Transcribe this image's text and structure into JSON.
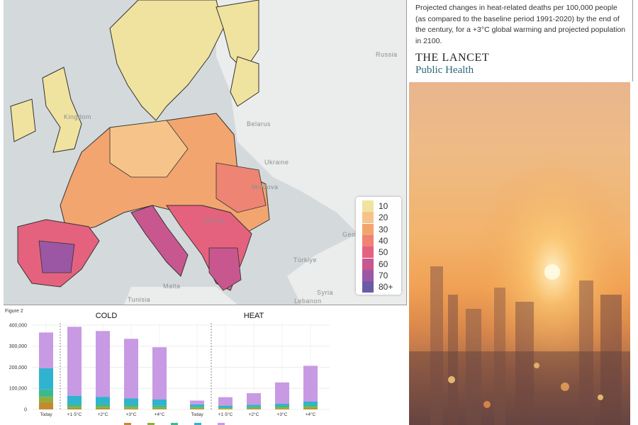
{
  "map": {
    "country_labels": [
      {
        "name": "Russia"
      },
      {
        "name": "Belarus"
      },
      {
        "name": "Ukraine"
      },
      {
        "name": "Moldova"
      },
      {
        "name": "Serbia"
      },
      {
        "name": "Türkiye"
      },
      {
        "name": "Syria"
      },
      {
        "name": "Lebanon"
      },
      {
        "name": "Malta"
      },
      {
        "name": "Tunisia"
      },
      {
        "name": "Geo"
      },
      {
        "name": "Kingdom"
      }
    ],
    "legend": [
      {
        "label": "10",
        "color": "#f0e3a0"
      },
      {
        "label": "20",
        "color": "#f6c48a"
      },
      {
        "label": "30",
        "color": "#f3a56f"
      },
      {
        "label": "40",
        "color": "#ee8473"
      },
      {
        "label": "50",
        "color": "#e5627e"
      },
      {
        "label": "60",
        "color": "#c8578f"
      },
      {
        "label": "70",
        "color": "#9b57a4"
      },
      {
        "label": "80+",
        "color": "#6c5aa8"
      }
    ]
  },
  "info": {
    "caption": "Projected changes in heat-related deaths per 100,000 people (as compared to the baseline period 1991-2020) by the end of the century, for a +3°C global warming and projected population in 2100.",
    "journal_title": "THE LANCET",
    "journal_subtitle": "Public Health"
  },
  "chart_data": {
    "type": "bar",
    "stacked": true,
    "figure_label": "Figure 2",
    "panels": [
      {
        "title": "COLD",
        "categories": [
          "Today",
          "+1·5°C",
          "+2°C",
          "+3°C",
          "+4°C"
        ]
      },
      {
        "title": "HEAT",
        "categories": [
          "Today",
          "+1·5°C",
          "+2°C",
          "+3°C",
          "+4°C"
        ]
      }
    ],
    "y_ticks": [
      "0",
      "100,000",
      "200,000",
      "300,000",
      "400,000"
    ],
    "ylim": [
      0,
      410000
    ],
    "grid": true,
    "series_colors": [
      "#c28b2e",
      "#8eaf3c",
      "#3cba8e",
      "#2fb3cf",
      "#c79ae3"
    ],
    "cold_values": [
      [
        35000,
        25000,
        35000,
        100000,
        170000
      ],
      [
        5000,
        8000,
        12000,
        40000,
        327000
      ],
      [
        5000,
        8000,
        12000,
        35000,
        312000
      ],
      [
        4000,
        7000,
        11000,
        30000,
        283000
      ],
      [
        3000,
        6000,
        10000,
        28000,
        248000
      ]
    ],
    "heat_values": [
      [
        3000,
        6000,
        5000,
        10000,
        18000
      ],
      [
        2000,
        4000,
        4000,
        8000,
        40000
      ],
      [
        3000,
        5000,
        6000,
        8000,
        55000
      ],
      [
        4000,
        6000,
        7000,
        10000,
        101000
      ],
      [
        5000,
        8000,
        9000,
        15000,
        170000
      ]
    ]
  }
}
